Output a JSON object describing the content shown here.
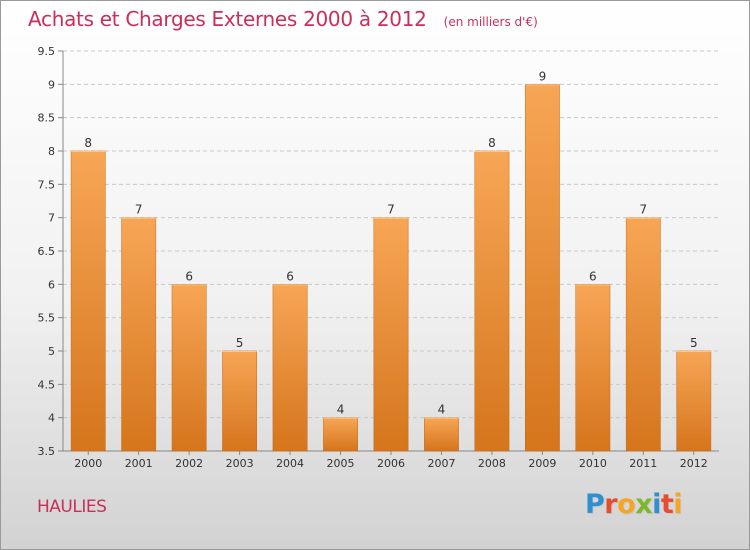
{
  "header": {
    "title": "Achats et Charges Externes 2000 à 2012",
    "subtitle": "(en milliers d'€)"
  },
  "footer": {
    "commune": "HAULIES",
    "brand": "Proxiti",
    "brand_letters": [
      {
        "ch": "P",
        "color": "#2f8fd0"
      },
      {
        "ch": "r",
        "color": "#e84c2e"
      },
      {
        "ch": "o",
        "color": "#f5a623"
      },
      {
        "ch": "x",
        "color": "#7cb829"
      },
      {
        "ch": "i",
        "color": "#2f8fd0"
      },
      {
        "ch": "t",
        "color": "#e84c2e"
      },
      {
        "ch": "i",
        "color": "#f5a623"
      }
    ]
  },
  "colors": {
    "bar_top": "#f7a656",
    "bar_bottom": "#d5751c",
    "bar_edge": "#c86a15",
    "grid": "#c8c8c8",
    "axis_text": "#333333",
    "accent": "#c8305a"
  },
  "chart_data": {
    "type": "bar",
    "categories": [
      "2000",
      "2001",
      "2002",
      "2003",
      "2004",
      "2005",
      "2006",
      "2007",
      "2008",
      "2009",
      "2010",
      "2011",
      "2012"
    ],
    "values": [
      8,
      7,
      6,
      5,
      6,
      4,
      7,
      4,
      8,
      9,
      6,
      7,
      5
    ],
    "value_labels": [
      "8",
      "7",
      "6",
      "5",
      "6",
      "4",
      "7",
      "4",
      "8",
      "9",
      "6",
      "7",
      "5"
    ],
    "ylim": [
      3.5,
      9.5
    ],
    "yticks": [
      3.5,
      4,
      4.5,
      5,
      5.5,
      6,
      6.5,
      7,
      7.5,
      8,
      8.5,
      9,
      9.5
    ],
    "ytick_labels": [
      "3.5",
      "4",
      "4.5",
      "5",
      "5.5",
      "6",
      "6.5",
      "7",
      "7.5",
      "8",
      "8.5",
      "9",
      "9.5"
    ],
    "grid": true,
    "xlabel": "",
    "ylabel": ""
  }
}
